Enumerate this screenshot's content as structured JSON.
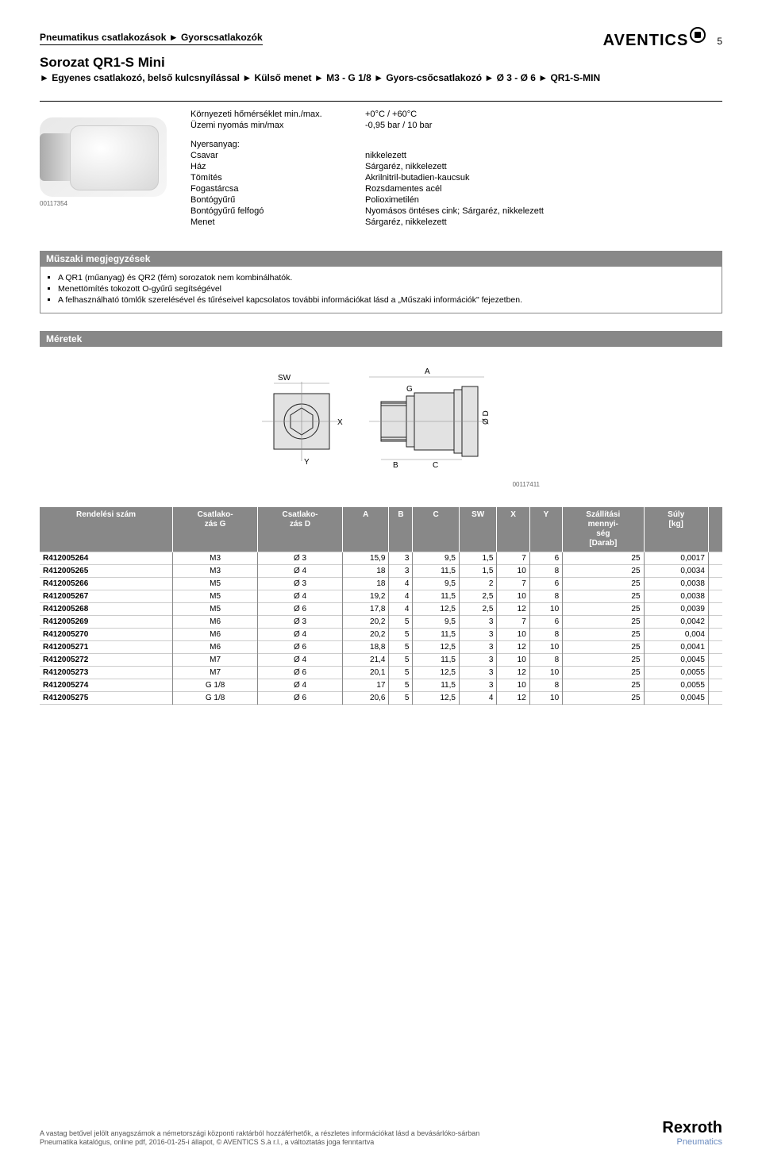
{
  "header": {
    "breadcrumb": "Pneumatikus csatlakozások ► Gyorscsatlakozók",
    "brand": "AVENTICS",
    "page_number": "5"
  },
  "title": {
    "main": "Sorozat QR1-S Mini",
    "sub": "► Egyenes csatlakozó, belső kulcsnyílással ► Külső menet ► M3 - G 1/8 ► Gyors-csőcsatlakozó ► Ø 3 - Ø 6 ► QR1-S-MIN"
  },
  "image_ids": {
    "product": "00117354",
    "dimension": "00117411"
  },
  "env": {
    "temp_label": "Környezeti hőmérséklet min./max.",
    "temp_value": "+0°C / +60°C",
    "press_label": "Üzemi nyomás min/max",
    "press_value": "-0,95 bar / 10 bar"
  },
  "materials": {
    "heading": "Nyersanyag:",
    "rows": [
      {
        "k": "Csavar",
        "v": "nikkelezett"
      },
      {
        "k": "Ház",
        "v": "Sárgaréz, nikkelezett"
      },
      {
        "k": "Tömítés",
        "v": "Akrilnitril-butadien-kaucsuk"
      },
      {
        "k": "Fogastárcsa",
        "v": "Rozsdamentes acél"
      },
      {
        "k": "Bontógyűrű",
        "v": "Polioximetilén"
      },
      {
        "k": "Bontógyűrű felfogó",
        "v": "Nyomásos öntéses cink; Sárgaréz, nikkelezett"
      },
      {
        "k": "Menet",
        "v": "Sárgaréz, nikkelezett"
      }
    ]
  },
  "notes": {
    "title": "Műszaki megjegyzések",
    "items": [
      "A QR1 (műanyag) és QR2 (fém) sorozatok nem kombinálhatók.",
      "Menettömítés tokozott O-gyűrű segítségével",
      "A felhasználható tömlők szerelésével és tűréseivel kapcsolatos további információkat lásd a „Műszaki információk\" fejezetben."
    ]
  },
  "dimensions": {
    "title": "Méretek",
    "labels": {
      "SW": "SW",
      "A": "A",
      "G": "G",
      "B": "B",
      "C": "C",
      "X": "X",
      "Y": "Y",
      "D": "Ø D"
    }
  },
  "table": {
    "headers": [
      "Rendelési szám",
      "Csatlako-\nzás G",
      "Csatlako-\nzás D",
      "A",
      "B",
      "C",
      "SW",
      "X",
      "Y",
      "Szállítási\nmennyi-\nség\n[Darab]",
      "Súly\n[kg]",
      ""
    ],
    "rows": [
      [
        "R412005264",
        "M3",
        "Ø 3",
        "15,9",
        "3",
        "9,5",
        "1,5",
        "7",
        "6",
        "25",
        "0,0017",
        ""
      ],
      [
        "R412005265",
        "M3",
        "Ø 4",
        "18",
        "3",
        "11,5",
        "1,5",
        "10",
        "8",
        "25",
        "0,0034",
        ""
      ],
      [
        "R412005266",
        "M5",
        "Ø 3",
        "18",
        "4",
        "9,5",
        "2",
        "7",
        "6",
        "25",
        "0,0038",
        ""
      ],
      [
        "R412005267",
        "M5",
        "Ø 4",
        "19,2",
        "4",
        "11,5",
        "2,5",
        "10",
        "8",
        "25",
        "0,0038",
        ""
      ],
      [
        "R412005268",
        "M5",
        "Ø 6",
        "17,8",
        "4",
        "12,5",
        "2,5",
        "12",
        "10",
        "25",
        "0,0039",
        ""
      ],
      [
        "R412005269",
        "M6",
        "Ø 3",
        "20,2",
        "5",
        "9,5",
        "3",
        "7",
        "6",
        "25",
        "0,0042",
        ""
      ],
      [
        "R412005270",
        "M6",
        "Ø 4",
        "20,2",
        "5",
        "11,5",
        "3",
        "10",
        "8",
        "25",
        "0,004",
        ""
      ],
      [
        "R412005271",
        "M6",
        "Ø 6",
        "18,8",
        "5",
        "12,5",
        "3",
        "12",
        "10",
        "25",
        "0,0041",
        ""
      ],
      [
        "R412005272",
        "M7",
        "Ø 4",
        "21,4",
        "5",
        "11,5",
        "3",
        "10",
        "8",
        "25",
        "0,0045",
        ""
      ],
      [
        "R412005273",
        "M7",
        "Ø 6",
        "20,1",
        "5",
        "12,5",
        "3",
        "12",
        "10",
        "25",
        "0,0055",
        ""
      ],
      [
        "R412005274",
        "G 1/8",
        "Ø 4",
        "17",
        "5",
        "11,5",
        "3",
        "10",
        "8",
        "25",
        "0,0055",
        ""
      ],
      [
        "R412005275",
        "G 1/8",
        "Ø 6",
        "20,6",
        "5",
        "12,5",
        "4",
        "12",
        "10",
        "25",
        "0,0045",
        ""
      ]
    ]
  },
  "footer": {
    "line1": "A vastag betűvel jelölt anyagszámok a németországi központi raktárból hozzáférhetők, a részletes információkat lásd a bevásárlóko-sárban",
    "line2": "Pneumatika katalógus, online pdf, 2016-01-25-i állapot, © AVENTICS S.à r.l., a változtatás joga fenntartva",
    "rexroth_main": "Rexroth",
    "rexroth_sub": "Pneumatics"
  },
  "colors": {
    "header_bg": "#888888",
    "header_fg": "#ffffff",
    "border": "#888888",
    "row_border": "#cccccc",
    "rexroth_sub": "#6a8bbf"
  }
}
